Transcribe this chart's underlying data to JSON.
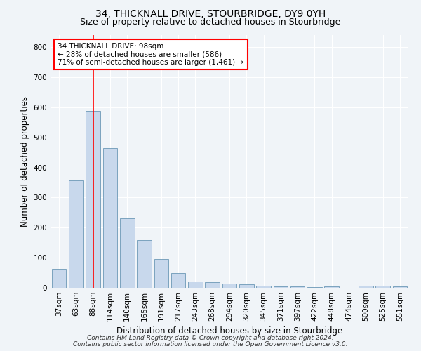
{
  "title": "34, THICKNALL DRIVE, STOURBRIDGE, DY9 0YH",
  "subtitle": "Size of property relative to detached houses in Stourbridge",
  "xlabel": "Distribution of detached houses by size in Stourbridge",
  "ylabel": "Number of detached properties",
  "bar_color": "#c8d8ec",
  "bar_edge_color": "#5588aa",
  "categories": [
    "37sqm",
    "63sqm",
    "88sqm",
    "114sqm",
    "140sqm",
    "165sqm",
    "191sqm",
    "217sqm",
    "243sqm",
    "268sqm",
    "294sqm",
    "320sqm",
    "345sqm",
    "371sqm",
    "397sqm",
    "422sqm",
    "448sqm",
    "474sqm",
    "500sqm",
    "525sqm",
    "551sqm"
  ],
  "values": [
    62,
    357,
    588,
    465,
    230,
    158,
    96,
    48,
    22,
    18,
    15,
    12,
    8,
    5,
    4,
    3,
    4,
    1,
    8,
    8,
    5
  ],
  "ylim": [
    0,
    840
  ],
  "yticks": [
    0,
    100,
    200,
    300,
    400,
    500,
    600,
    700,
    800
  ],
  "red_line_x": 2.0,
  "annotation_title": "34 THICKNALL DRIVE: 98sqm",
  "annotation_line1": "← 28% of detached houses are smaller (586)",
  "annotation_line2": "71% of semi-detached houses are larger (1,461) →",
  "footer_line1": "Contains HM Land Registry data © Crown copyright and database right 2024.",
  "footer_line2": "Contains public sector information licensed under the Open Government Licence v3.0.",
  "background_color": "#f0f4f8",
  "plot_bg_color": "#f0f4f8",
  "grid_color": "#ffffff",
  "title_fontsize": 10,
  "subtitle_fontsize": 9,
  "axis_label_fontsize": 8.5,
  "tick_fontsize": 7.5,
  "footer_fontsize": 6.5,
  "annotation_fontsize": 7.5
}
